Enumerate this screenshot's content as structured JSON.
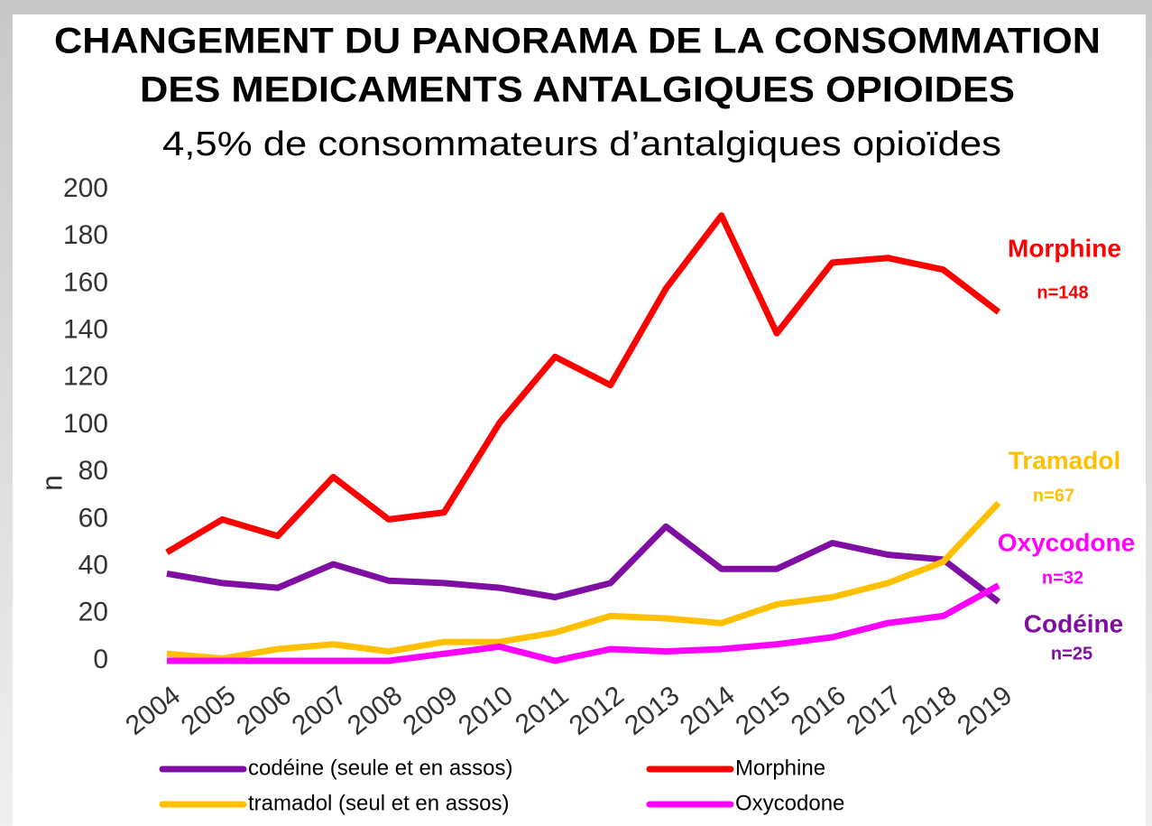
{
  "chart_data": {
    "type": "line",
    "title": "CHANGEMENT DU PANORAMA DE LA CONSOMMATION",
    "title_line2": "DES MEDICAMENTS ANTALGIQUES OPIOIDES",
    "subtitle": "4,5% de consommateurs d’antalgiques opioïdes",
    "y_label": "n",
    "categories": [
      "2004",
      "2005",
      "2006",
      "2007",
      "2008",
      "2009",
      "2010",
      "2011",
      "2012",
      "2013",
      "2014",
      "2015",
      "2016",
      "2017",
      "2018",
      "2019"
    ],
    "series": [
      {
        "name": "codéine (seule et en assos)",
        "color": "#7f0fa3",
        "values": [
          37,
          33,
          31,
          41,
          34,
          33,
          31,
          27,
          33,
          57,
          39,
          39,
          50,
          45,
          43,
          25
        ]
      },
      {
        "name": "Morphine",
        "color": "#ff0000",
        "values": [
          46,
          60,
          53,
          78,
          60,
          63,
          101,
          129,
          117,
          158,
          189,
          139,
          169,
          171,
          166,
          148
        ]
      },
      {
        "name": "tramadol (seul et en assos)",
        "color": "#ffc000",
        "values": [
          3,
          1,
          5,
          7,
          4,
          8,
          8,
          12,
          19,
          18,
          16,
          24,
          27,
          33,
          42,
          67
        ]
      },
      {
        "name": "Oxycodone",
        "color": "#ff00ff",
        "values": [
          0,
          0,
          0,
          0,
          0,
          3,
          6,
          0,
          5,
          4,
          5,
          7,
          10,
          16,
          19,
          32
        ]
      }
    ],
    "annotations": [
      {
        "text": "Morphine",
        "color": "#ff0000"
      },
      {
        "text": "n=148",
        "color": "#ff0000"
      },
      {
        "text": "Tramadol",
        "color": "#ffc000"
      },
      {
        "text": "n=67",
        "color": "#ffc000"
      },
      {
        "text": "Oxycodone",
        "color": "#ff00ff"
      },
      {
        "text": "n=32",
        "color": "#ff00ff"
      },
      {
        "text": "Codéine",
        "color": "#7f0fa3"
      },
      {
        "text": "n=25",
        "color": "#7f0fa3"
      }
    ],
    "ylim": [
      0,
      200
    ],
    "yticks": [
      0,
      20,
      40,
      60,
      80,
      100,
      120,
      140,
      160,
      180,
      200
    ],
    "grid": false
  }
}
